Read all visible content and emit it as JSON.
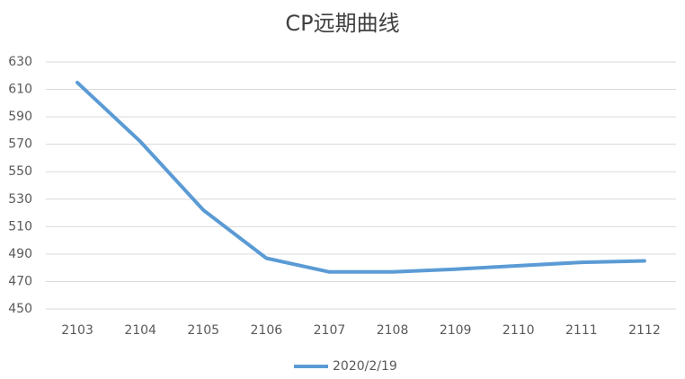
{
  "chart_data": {
    "type": "line",
    "title": "CP远期曲线",
    "categories": [
      "2103",
      "2104",
      "2105",
      "2106",
      "2107",
      "2108",
      "2109",
      "2110",
      "2111",
      "2112"
    ],
    "series": [
      {
        "name": "2020/2/19",
        "color": "#5b9bd5",
        "values": [
          615,
          572,
          522,
          487,
          477,
          477,
          479,
          481.5,
          484,
          485
        ]
      }
    ],
    "ylim": [
      450,
      630
    ],
    "yticks": [
      450,
      470,
      490,
      510,
      530,
      550,
      570,
      590,
      610,
      630
    ],
    "grid": true,
    "legend": "bottom"
  }
}
